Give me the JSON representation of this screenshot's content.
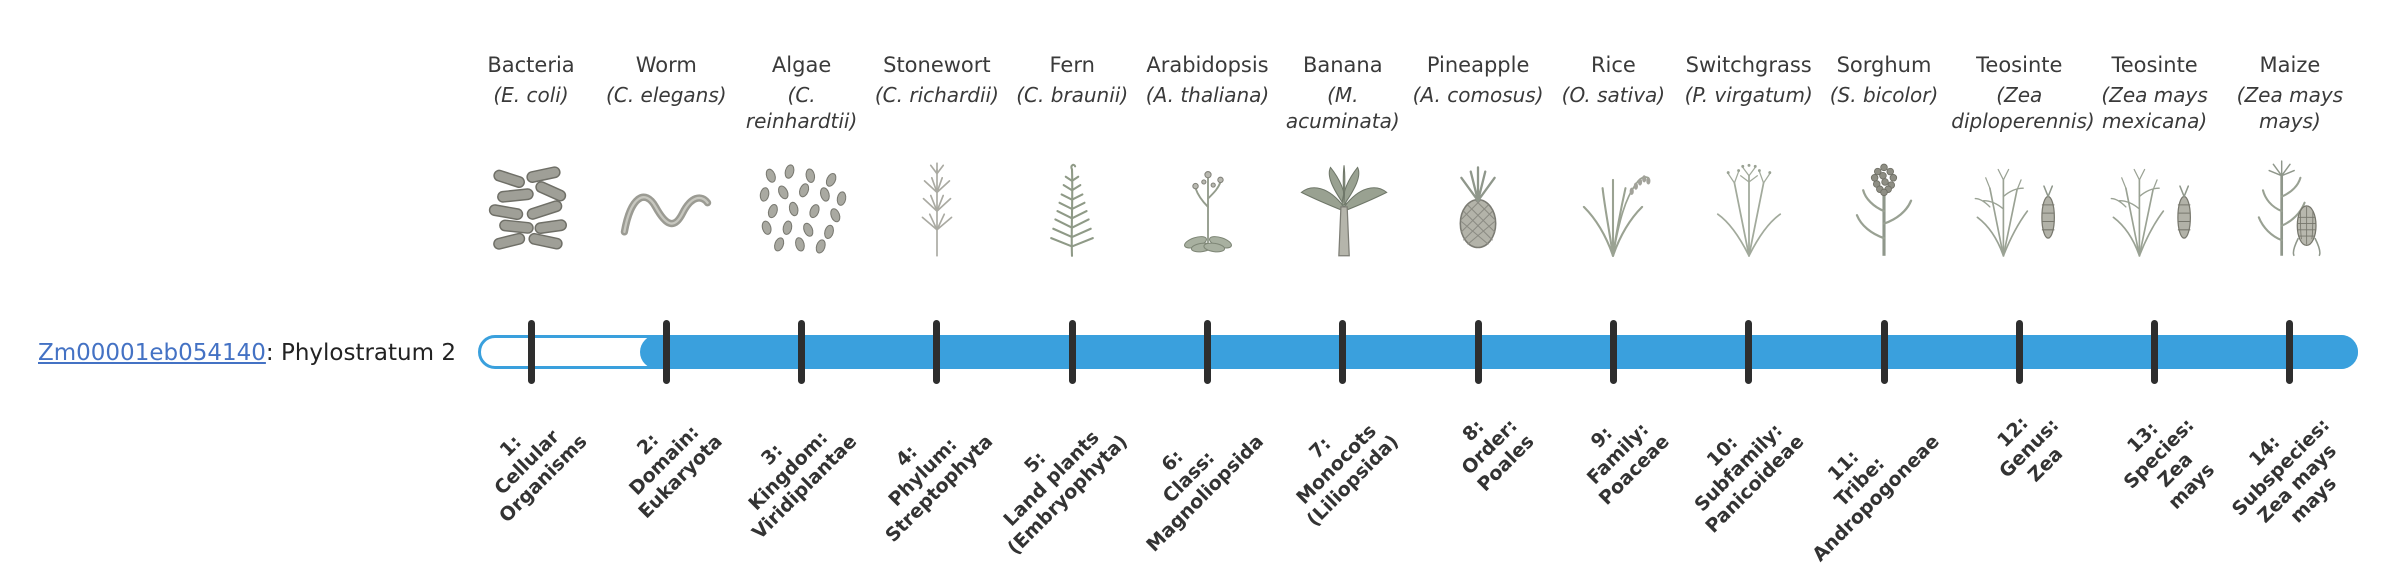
{
  "page": {
    "background": "#ffffff"
  },
  "gene": {
    "id": "Zm00001eb054140",
    "suffix": ": Phylostratum 2",
    "phylostratum": 2
  },
  "bar": {
    "fill_color": "#3aa0dd",
    "track_background": "#ffffff",
    "tick_color": "#2e2e2e"
  },
  "link_color": "#4472c4",
  "organisms": [
    {
      "common": "Bacteria",
      "sci": "(E. coli)",
      "icon": "bacteria-icon",
      "stratum_label": "1:\nCellular\nOrganisms"
    },
    {
      "common": "Worm",
      "sci": "(C. elegans)",
      "icon": "worm-icon",
      "stratum_label": "2:\nDomain:\nEukaryota"
    },
    {
      "common": "Algae",
      "sci": "(C. reinhardtii)",
      "icon": "algae-icon",
      "stratum_label": "3:\nKingdom:\nViridiplantae"
    },
    {
      "common": "Stonewort",
      "sci": "(C. richardii)",
      "icon": "stonewort-icon",
      "stratum_label": "4:\nPhylum:\nStreptophyta"
    },
    {
      "common": "Fern",
      "sci": "(C. braunii)",
      "icon": "fern-icon",
      "stratum_label": "5:\nLand plants\n(Embryophyta)"
    },
    {
      "common": "Arabidopsis",
      "sci": "(A. thaliana)",
      "icon": "arabidopsis-icon",
      "stratum_label": "6:\nClass:\nMagnoliopsida"
    },
    {
      "common": "Banana",
      "sci": "(M. acuminata)",
      "icon": "banana-icon",
      "stratum_label": "7:\nMonocots\n(Liliopsida)"
    },
    {
      "common": "Pineapple",
      "sci": "(A. comosus)",
      "icon": "pineapple-icon",
      "stratum_label": "8:\nOrder:\nPoales"
    },
    {
      "common": "Rice",
      "sci": "(O. sativa)",
      "icon": "rice-icon",
      "stratum_label": "9:\nFamily:\nPoaceae"
    },
    {
      "common": "Switchgrass",
      "sci": "(P. virgatum)",
      "icon": "switchgrass-icon",
      "stratum_label": "10:\nSubfamily:\nPanicoideae"
    },
    {
      "common": "Sorghum",
      "sci": "(S. bicolor)",
      "icon": "sorghum-icon",
      "stratum_label": "11:\nTribe:\nAndropogoneae"
    },
    {
      "common": "Teosinte",
      "sci": "(Zea diploperennis)",
      "icon": "teosinte-icon",
      "stratum_label": "12:\nGenus:\nZea"
    },
    {
      "common": "Teosinte",
      "sci": "(Zea mays mexicana)",
      "icon": "teosinte-icon",
      "stratum_label": "13:\nSpecies:\nZea\nmays"
    },
    {
      "common": "Maize",
      "sci": "(Zea mays mays)",
      "icon": "maize-icon",
      "stratum_label": "14:\nSubspecies:\nZea mays\nmays"
    }
  ]
}
